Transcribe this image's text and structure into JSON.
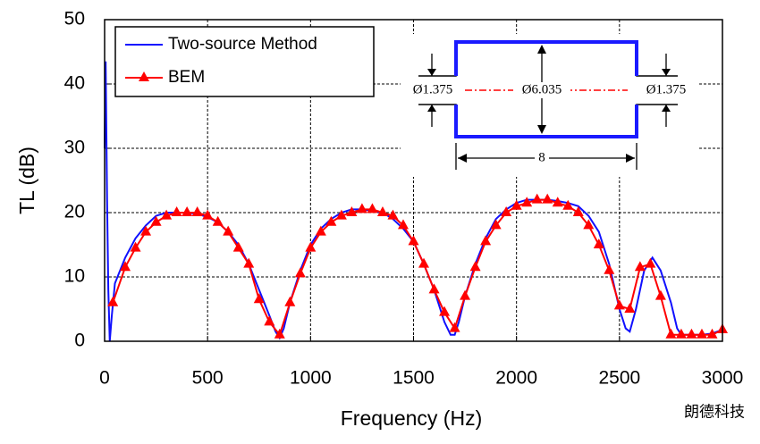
{
  "chart_data": {
    "type": "line",
    "xlabel": "Frequency (Hz)",
    "ylabel": "TL (dB)",
    "xlim": [
      0,
      3000
    ],
    "xticks": [
      0,
      500,
      1000,
      1500,
      2000,
      2500,
      3000
    ],
    "ylim": [
      0,
      50
    ],
    "yticks": [
      0,
      10,
      20,
      30,
      40,
      50
    ],
    "grid": true,
    "legend": "upper left",
    "series": [
      {
        "name": "Two-source Method",
        "color": "#1010ff",
        "marker": "none",
        "x": [
          0,
          5,
          12,
          18,
          25,
          35,
          50,
          100,
          150,
          200,
          250,
          300,
          350,
          400,
          450,
          500,
          550,
          600,
          650,
          700,
          750,
          800,
          830,
          850,
          870,
          900,
          950,
          1000,
          1050,
          1100,
          1150,
          1200,
          1250,
          1300,
          1350,
          1400,
          1450,
          1500,
          1550,
          1600,
          1650,
          1680,
          1700,
          1720,
          1750,
          1800,
          1850,
          1900,
          1950,
          2000,
          2050,
          2100,
          2150,
          2200,
          2250,
          2300,
          2350,
          2400,
          2450,
          2500,
          2530,
          2550,
          2580,
          2620,
          2660,
          2700,
          2750,
          2780,
          2800,
          2850,
          2900,
          2950,
          3000
        ],
        "values": [
          30,
          43.5,
          22,
          8,
          0,
          4,
          9,
          13,
          16,
          18,
          19.5,
          20,
          20,
          20,
          19.8,
          19.3,
          18.5,
          17,
          15,
          12,
          8,
          4,
          1.5,
          0.5,
          2,
          6,
          11,
          15,
          17.5,
          19,
          20,
          20.5,
          20.5,
          20.3,
          20,
          19,
          17.5,
          15.5,
          12,
          8,
          3,
          1,
          1,
          3,
          7,
          12,
          16,
          19,
          20.5,
          21.5,
          22,
          22,
          22,
          21.8,
          21.5,
          21,
          19.5,
          17,
          12,
          5,
          2,
          1.5,
          5,
          11,
          13,
          11,
          6,
          2,
          1,
          1,
          1,
          1.2,
          1.8
        ]
      },
      {
        "name": "BEM",
        "color": "#ff0000",
        "marker": "triangle",
        "x": [
          40,
          100,
          150,
          200,
          250,
          300,
          350,
          400,
          450,
          500,
          550,
          600,
          650,
          700,
          750,
          800,
          850,
          900,
          950,
          1000,
          1050,
          1100,
          1150,
          1200,
          1250,
          1300,
          1350,
          1400,
          1450,
          1500,
          1550,
          1600,
          1650,
          1700,
          1750,
          1800,
          1850,
          1900,
          1950,
          2000,
          2050,
          2100,
          2150,
          2200,
          2250,
          2300,
          2350,
          2400,
          2450,
          2500,
          2550,
          2600,
          2650,
          2700,
          2750,
          2800,
          2850,
          2900,
          2950,
          3000
        ],
        "values": [
          6,
          11.5,
          14.5,
          17,
          18.5,
          19.5,
          20,
          20,
          20,
          19.5,
          18.5,
          17,
          14.5,
          12,
          6.5,
          3,
          1,
          6,
          10.5,
          14.5,
          17,
          18.5,
          19.5,
          20,
          20.5,
          20.5,
          20,
          19.5,
          18,
          15.5,
          12,
          8,
          4.5,
          2,
          7,
          11.5,
          15.5,
          18,
          20,
          21,
          21.5,
          22,
          22,
          21.5,
          21,
          20,
          18,
          15,
          11,
          5.5,
          5,
          11.5,
          12,
          7,
          1,
          1,
          1,
          1,
          1,
          1.8
        ]
      }
    ],
    "annotations": [
      "Ø1.375",
      "Ø6.035",
      "Ø1.375",
      "8"
    ],
    "watermark": "朗德科技"
  }
}
